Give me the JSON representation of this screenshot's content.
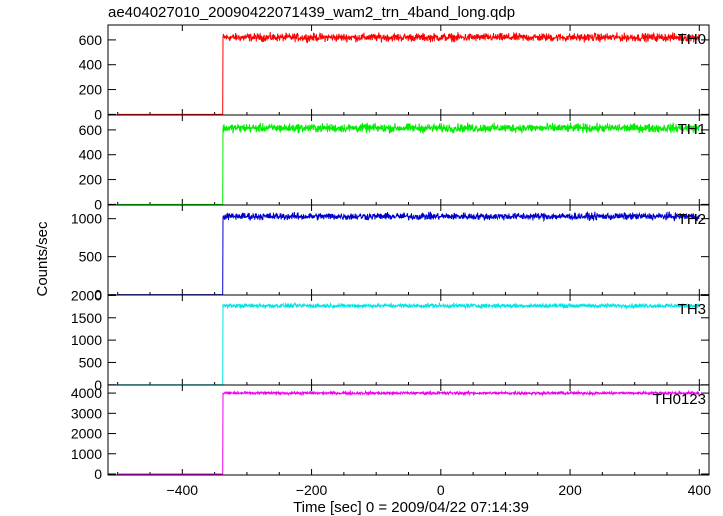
{
  "title": "ae404027010_20090422071439_wam2_trn_4band_long.qdp",
  "chart_data": {
    "type": "line",
    "xlabel": "Time [sec] 0 = 2009/04/22 07:14:39",
    "ylabel": "Counts/sec",
    "xlim": [
      -515,
      415
    ],
    "x_ticks": [
      -400,
      -200,
      0,
      200,
      400
    ],
    "x_tick_labels": [
      "−400",
      "−200",
      "0",
      "200",
      "400"
    ],
    "onset_time": -337,
    "time_range": [
      -500,
      400
    ],
    "panels": [
      {
        "name": "TH0",
        "color": "#ff0000",
        "ylim": [
          -5,
          720
        ],
        "yticks": [
          0,
          200,
          400,
          600
        ],
        "yticklabels": [
          "0",
          "200",
          "400",
          "600"
        ],
        "pre_level": 0,
        "post_level": 620,
        "noise": 28
      },
      {
        "name": "TH1",
        "color": "#00ee00",
        "ylim": [
          -5,
          720
        ],
        "yticks": [
          0,
          200,
          400,
          600
        ],
        "yticklabels": [
          "0",
          "200",
          "400",
          "600"
        ],
        "pre_level": 0,
        "post_level": 615,
        "noise": 30
      },
      {
        "name": "TH2",
        "color": "#0000cc",
        "ylim": [
          -5,
          1180
        ],
        "yticks": [
          0,
          500,
          1000
        ],
        "yticklabels": [
          "0",
          "500",
          "1000"
        ],
        "pre_level": 0,
        "post_level": 1030,
        "noise": 40
      },
      {
        "name": "TH3",
        "color": "#00e5e5",
        "ylim": [
          -5,
          2010
        ],
        "yticks": [
          0,
          500,
          1000,
          1500,
          2000
        ],
        "yticklabels": [
          "0",
          "500",
          "1000",
          "1500",
          "2000"
        ],
        "pre_level": 0,
        "post_level": 1770,
        "noise": 40
      },
      {
        "name": "TH0123",
        "color": "#ee00ee",
        "ylim": [
          -50,
          4400
        ],
        "yticks": [
          0,
          1000,
          2000,
          3000,
          4000
        ],
        "yticklabels": [
          "0",
          "1000",
          "2000",
          "3000",
          "4000"
        ],
        "pre_level": 0,
        "post_level": 4000,
        "noise": 60
      }
    ]
  }
}
